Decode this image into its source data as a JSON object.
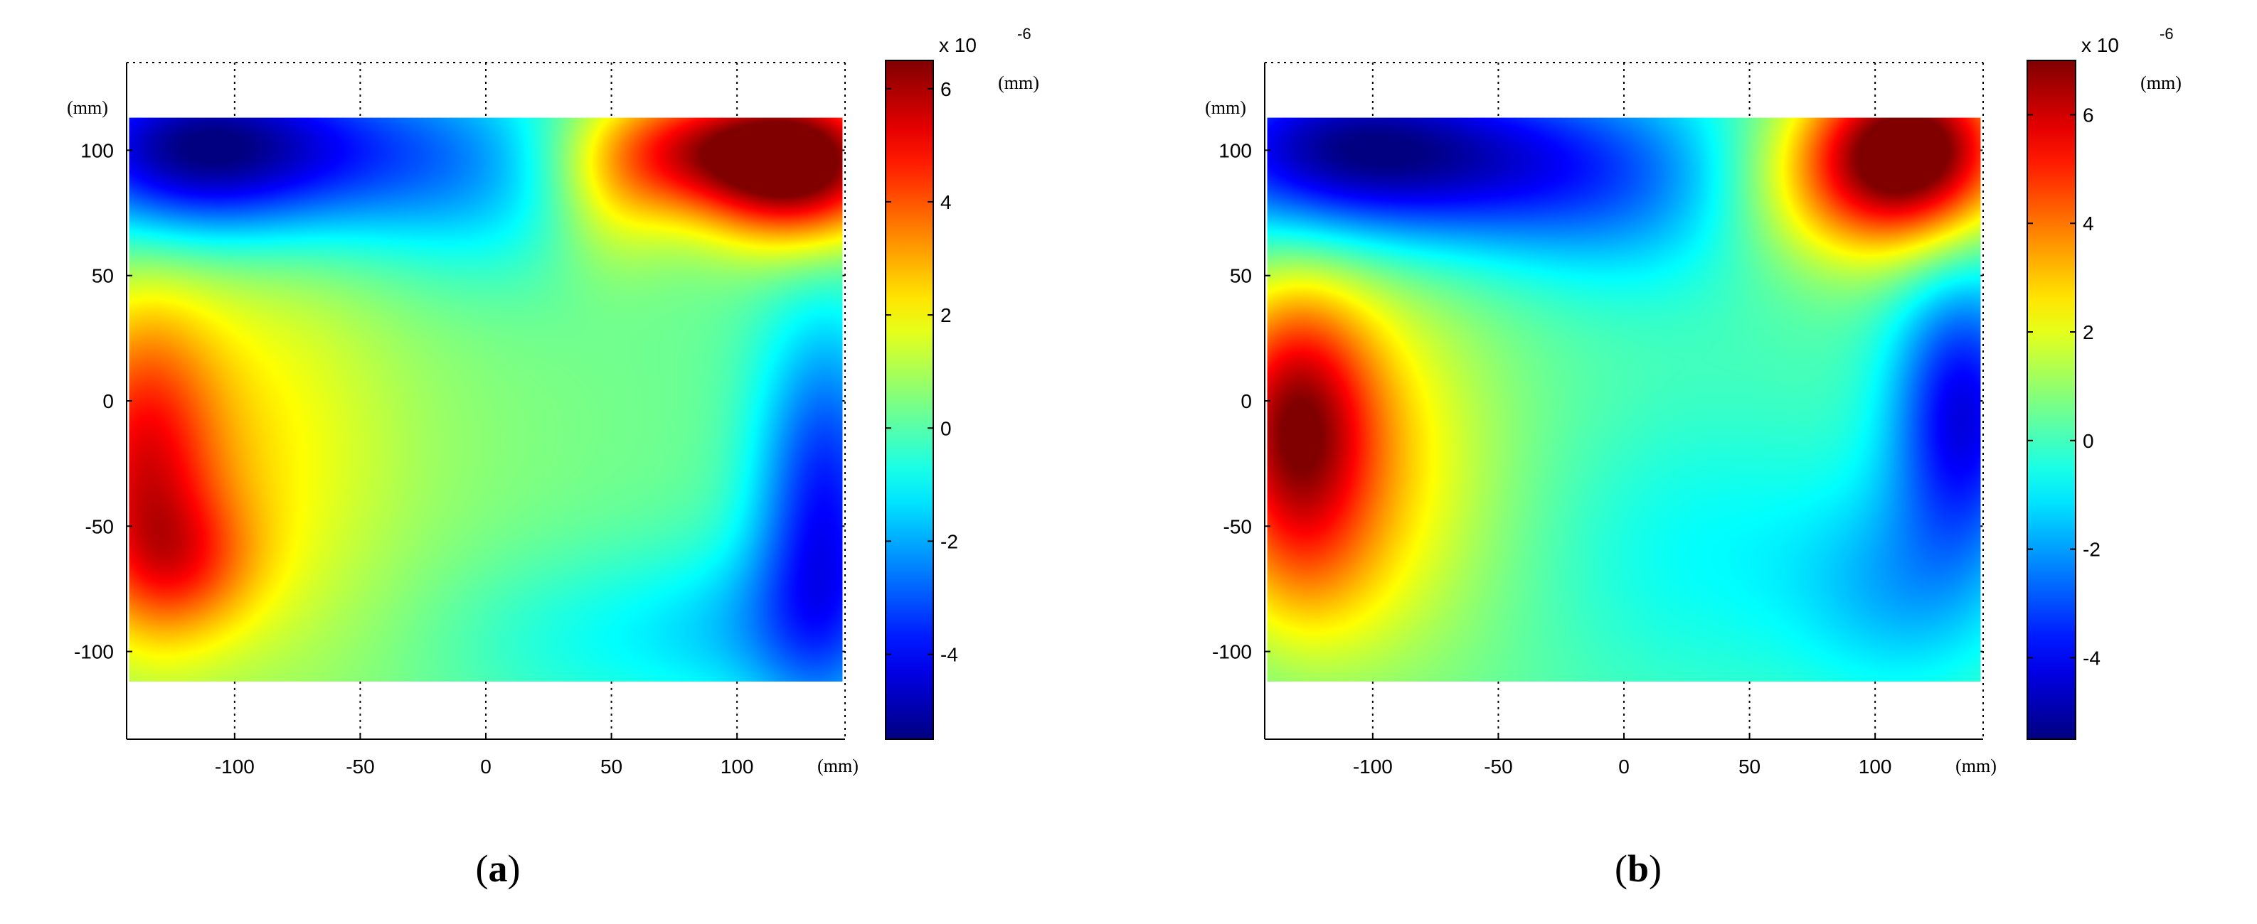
{
  "chart_data": [
    {
      "type": "heatmap",
      "panel_label": "a",
      "x_unit": "(mm)",
      "y_unit": "(mm)",
      "xlim": [
        -143,
        143
      ],
      "ylim": [
        -135,
        135
      ],
      "x_ticks": [
        -100,
        -50,
        0,
        50,
        100
      ],
      "y_ticks": [
        -100,
        -50,
        0,
        50,
        100
      ],
      "data_extent": {
        "x": [
          -142,
          142
        ],
        "y": [
          -112,
          113
        ]
      },
      "grid": "dotted",
      "colorbar": {
        "range": [
          -5.5,
          6.5
        ],
        "ticks": [
          -4,
          -2,
          0,
          2,
          4,
          6
        ],
        "exponent_label": "x 10",
        "exponent": "-6",
        "unit": "(mm)"
      },
      "blobs": [
        {
          "x": 125,
          "y": 95,
          "sx": 28,
          "sy": 22,
          "a": 7.0
        },
        {
          "x": 75,
          "y": 100,
          "sx": 30,
          "sy": 18,
          "a": 4.0
        },
        {
          "x": 50,
          "y": 75,
          "sx": 18,
          "sy": 20,
          "a": 1.2
        },
        {
          "x": -138,
          "y": -25,
          "sx": 22,
          "sy": 45,
          "a": 4.0
        },
        {
          "x": -120,
          "y": -65,
          "sx": 22,
          "sy": 20,
          "a": 2.0
        },
        {
          "x": -95,
          "y": -20,
          "sx": 40,
          "sy": 65,
          "a": 1.6
        },
        {
          "x": -40,
          "y": -20,
          "sx": 70,
          "sy": 80,
          "a": 0.4
        },
        {
          "x": -120,
          "y": 100,
          "sx": 40,
          "sy": 25,
          "a": -5.0
        },
        {
          "x": -60,
          "y": 100,
          "sx": 45,
          "sy": 25,
          "a": -2.5
        },
        {
          "x": 0,
          "y": 90,
          "sx": 40,
          "sy": 30,
          "a": -1.6
        },
        {
          "x": 135,
          "y": -45,
          "sx": 20,
          "sy": 55,
          "a": -4.0
        },
        {
          "x": 110,
          "y": -90,
          "sx": 35,
          "sy": 25,
          "a": -1.4
        },
        {
          "x": 40,
          "y": -95,
          "sx": 45,
          "sy": 25,
          "a": -1.0
        }
      ]
    },
    {
      "type": "heatmap",
      "panel_label": "b",
      "x_unit": "(mm)",
      "y_unit": "(mm)",
      "xlim": [
        -143,
        143
      ],
      "ylim": [
        -135,
        135
      ],
      "x_ticks": [
        -100,
        -50,
        0,
        50,
        100
      ],
      "y_ticks": [
        -100,
        -50,
        0,
        50,
        100
      ],
      "data_extent": {
        "x": [
          -142,
          142
        ],
        "y": [
          -112,
          113
        ]
      },
      "grid": "dotted",
      "colorbar": {
        "range": [
          -5.5,
          7.0
        ],
        "ticks": [
          -4,
          -2,
          0,
          2,
          4,
          6
        ],
        "exponent_label": "x 10",
        "exponent": "-6",
        "unit": "(mm)"
      },
      "blobs": [
        {
          "x": 115,
          "y": 100,
          "sx": 28,
          "sy": 25,
          "a": 7.4
        },
        {
          "x": 80,
          "y": 85,
          "sx": 30,
          "sy": 25,
          "a": 2.0
        },
        {
          "x": -132,
          "y": -10,
          "sx": 22,
          "sy": 38,
          "a": 5.2
        },
        {
          "x": -105,
          "y": -20,
          "sx": 35,
          "sy": 55,
          "a": 2.0
        },
        {
          "x": -130,
          "y": -70,
          "sx": 25,
          "sy": 25,
          "a": 1.0
        },
        {
          "x": -80,
          "y": -40,
          "sx": 50,
          "sy": 60,
          "a": 0.6
        },
        {
          "x": -115,
          "y": 100,
          "sx": 45,
          "sy": 25,
          "a": -5.0
        },
        {
          "x": -45,
          "y": 95,
          "sx": 45,
          "sy": 25,
          "a": -2.8
        },
        {
          "x": 10,
          "y": 85,
          "sx": 40,
          "sy": 30,
          "a": -1.6
        },
        {
          "x": 135,
          "y": -5,
          "sx": 20,
          "sy": 40,
          "a": -4.4
        },
        {
          "x": 110,
          "y": -75,
          "sx": 30,
          "sy": 30,
          "a": -1.6
        },
        {
          "x": 30,
          "y": -60,
          "sx": 50,
          "sy": 40,
          "a": -1.0
        }
      ]
    }
  ]
}
